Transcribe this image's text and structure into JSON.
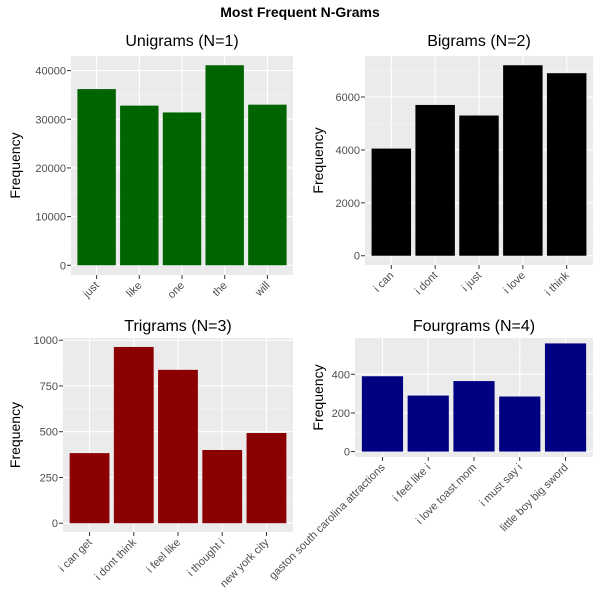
{
  "title": "Most Frequent N-Grams",
  "chart_data": [
    {
      "type": "bar",
      "title": "Unigrams (N=1)",
      "ylabel": "Frequency",
      "xlabel": "",
      "color": "#006400",
      "categories": [
        "just",
        "like",
        "one",
        "the",
        "will"
      ],
      "values": [
        36200,
        32800,
        31400,
        41100,
        33000
      ],
      "ylim": [
        -2000,
        43000
      ],
      "yticks": [
        0,
        10000,
        20000,
        30000,
        40000
      ],
      "grid": true
    },
    {
      "type": "bar",
      "title": "Bigrams (N=2)",
      "ylabel": "Frequency",
      "xlabel": "",
      "color": "#000000",
      "categories": [
        "i can",
        "i dont",
        "i just",
        "i love",
        "i think"
      ],
      "values": [
        4050,
        5700,
        5300,
        7200,
        6900
      ],
      "ylim": [
        -350,
        7550
      ],
      "yticks": [
        0,
        2000,
        4000,
        6000
      ],
      "grid": true
    },
    {
      "type": "bar",
      "title": "Trigrams (N=3)",
      "ylabel": "Frequency",
      "xlabel": "",
      "color": "#8b0000",
      "categories": [
        "i can get",
        "i dont think",
        "i feel like",
        "i thought i",
        "new york city"
      ],
      "values": [
        383,
        963,
        838,
        400,
        493
      ],
      "ylim": [
        -48,
        1012
      ],
      "yticks": [
        0,
        250,
        500,
        750,
        1000
      ],
      "grid": true
    },
    {
      "type": "bar",
      "title": "Fourgrams (N=4)",
      "ylabel": "Frequency",
      "xlabel": "",
      "color": "#000080",
      "categories": [
        "gaston south carolina attractions",
        "i feel like i",
        "i love toast mom",
        "i must say i",
        "little boy big sword"
      ],
      "values": [
        390,
        290,
        365,
        285,
        560
      ],
      "ylim": [
        -28,
        588
      ],
      "yticks": [
        0,
        200,
        400
      ],
      "grid": true
    }
  ]
}
